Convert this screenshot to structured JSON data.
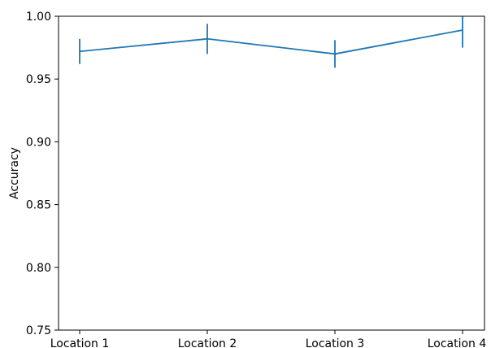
{
  "chart_data": {
    "type": "line",
    "title": "",
    "xlabel": "",
    "ylabel": "Accuracy",
    "categories": [
      "Location 1",
      "Location 2",
      "Location 3",
      "Location 4"
    ],
    "series": [
      {
        "values": [
          0.972,
          0.982,
          0.97,
          0.989
        ],
        "error_lower": [
          0.962,
          0.97,
          0.959,
          0.975
        ],
        "error_upper": [
          0.982,
          0.994,
          0.981,
          1.003
        ],
        "color": "#1f77b4"
      }
    ],
    "ylim": [
      0.75,
      1.0
    ],
    "yticks": [
      "0.75",
      "0.80",
      "0.85",
      "0.90",
      "0.95",
      "1.00"
    ],
    "grid": false,
    "legend": "none"
  }
}
